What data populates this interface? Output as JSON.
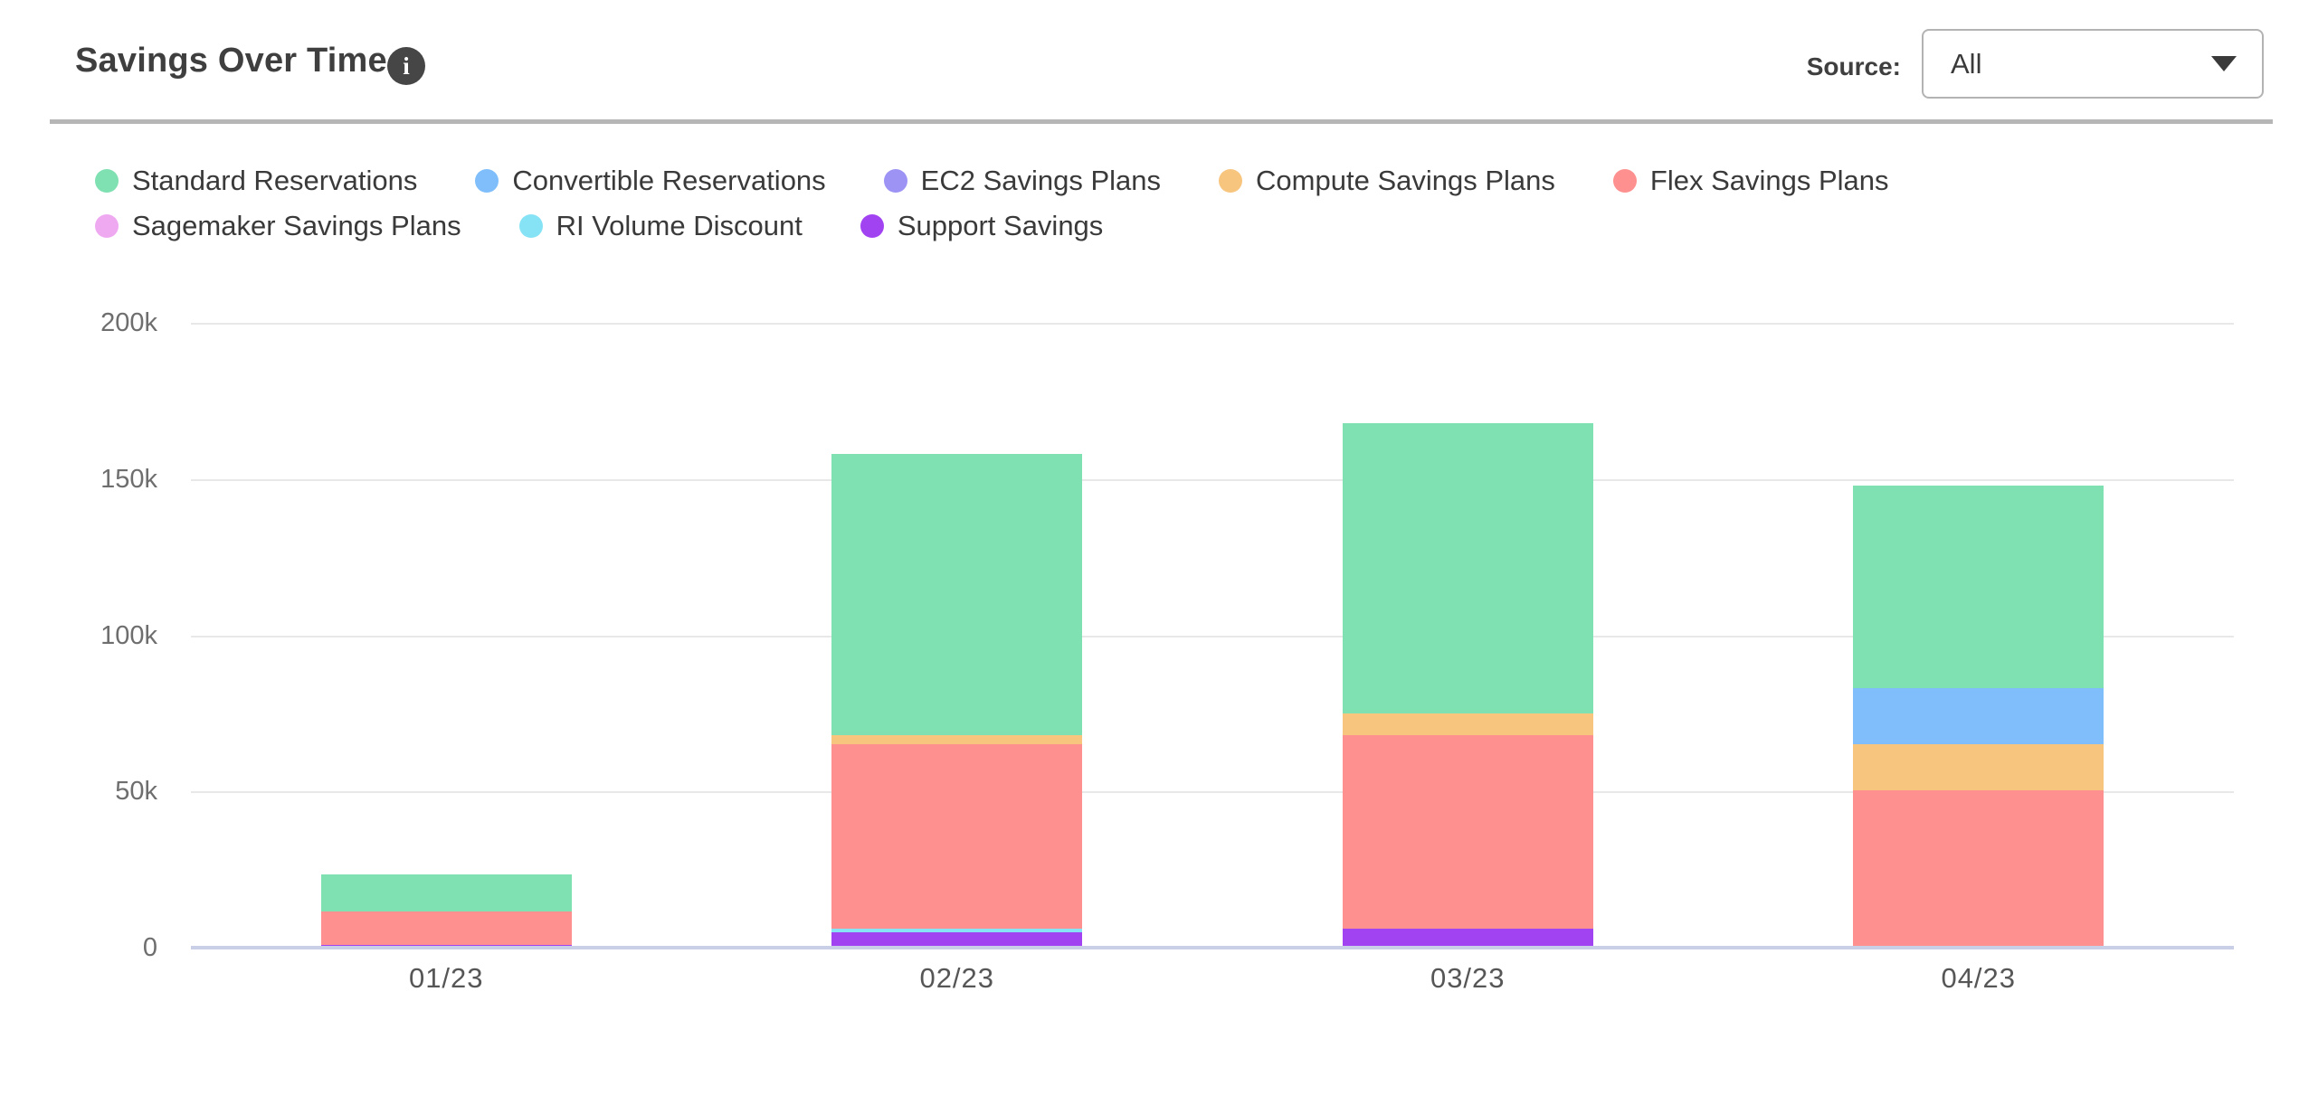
{
  "header": {
    "title": "Savings Over Time",
    "info_icon_glyph": "i",
    "source_label": "Source:",
    "source_value": "All"
  },
  "chart_data": {
    "type": "bar",
    "subtype": "stacked-vertical",
    "title": "Savings Over Time",
    "categories": [
      "01/23",
      "02/23",
      "03/23",
      "04/23"
    ],
    "y_ticks": [
      "200k",
      "150k",
      "100k",
      "50k",
      "0"
    ],
    "ylim": [
      0,
      200000
    ],
    "grid": "horizontal",
    "legend_position": "top-left",
    "series": [
      {
        "name": "Standard Reservations",
        "color": "#7FE0B2",
        "values": [
          12000,
          90000,
          93000,
          65000
        ]
      },
      {
        "name": "Convertible Reservations",
        "color": "#7FBEFB",
        "values": [
          0,
          0,
          0,
          18000
        ]
      },
      {
        "name": "EC2 Savings Plans",
        "color": "#9C93F5",
        "values": [
          0,
          0,
          0,
          0
        ]
      },
      {
        "name": "Compute Savings Plans",
        "color": "#F8C57E",
        "values": [
          0,
          3000,
          7000,
          14500
        ]
      },
      {
        "name": "Flex Savings Plans",
        "color": "#FF9090",
        "values": [
          10500,
          59000,
          62000,
          50500
        ]
      },
      {
        "name": "Sagemaker Savings Plans",
        "color": "#EFA9F1",
        "values": [
          0,
          0,
          0,
          0
        ]
      },
      {
        "name": "RI Volume Discount",
        "color": "#86E3F5",
        "values": [
          0,
          1000,
          0,
          0
        ]
      },
      {
        "name": "Support Savings",
        "color": "#A243F2",
        "values": [
          1000,
          5000,
          6000,
          0
        ]
      }
    ],
    "stack_order_bottom_to_top": [
      "Support Savings",
      "RI Volume Discount",
      "Sagemaker Savings Plans",
      "Flex Savings Plans",
      "Compute Savings Plans",
      "EC2 Savings Plans",
      "Convertible Reservations",
      "Standard Reservations"
    ],
    "bar_totals": [
      23500,
      158000,
      168000,
      148000
    ],
    "colors": {
      "gridline": "#E8E8E8",
      "axis_baseline": "#C9CFE6",
      "axis_text": "#6E6E6E",
      "title_text": "#3F3F3F",
      "divider": "#B6B6B6"
    }
  }
}
